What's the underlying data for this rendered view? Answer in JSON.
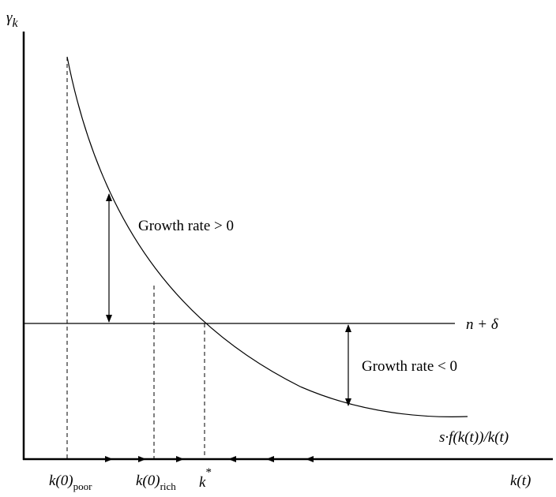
{
  "axes": {
    "y_label": {
      "symbol": "γ",
      "subscript": "k"
    },
    "x_label": "k(t)"
  },
  "lines": {
    "depreciation": "n + δ",
    "curve": "s·f(k(t))/k(t)"
  },
  "annotations": {
    "above": "Growth rate > 0",
    "below": "Growth rate < 0"
  },
  "x_points": [
    {
      "base": "k(0)",
      "subscript": "poor"
    },
    {
      "base": "k(0)",
      "subscript": "rich"
    },
    {
      "base": "k",
      "superscript": "*"
    }
  ]
}
